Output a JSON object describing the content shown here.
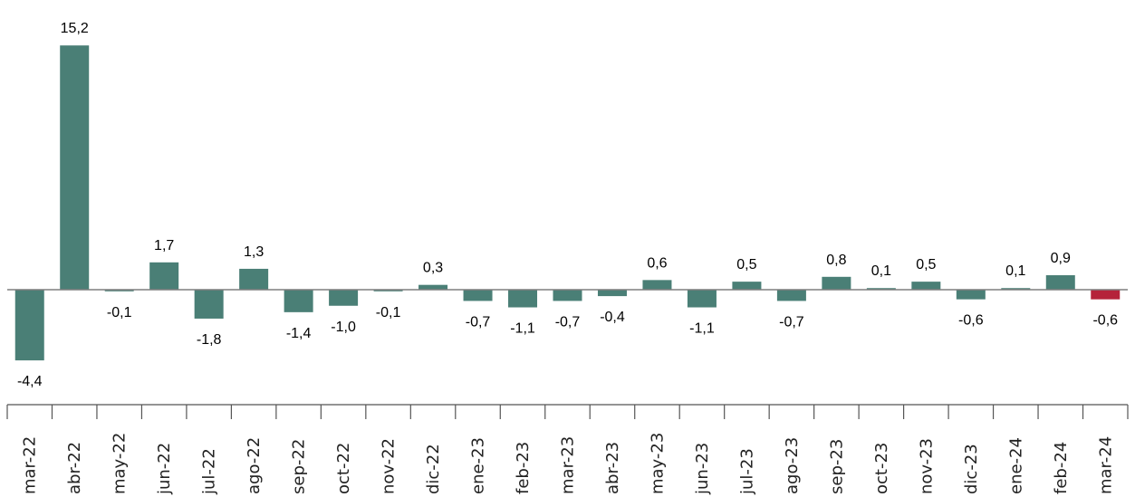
{
  "chart_data": {
    "type": "bar",
    "title": "",
    "xlabel": "",
    "ylabel": "",
    "categories": [
      "mar-22",
      "abr-22",
      "may-22",
      "jun-22",
      "jul-22",
      "ago-22",
      "sep-22",
      "oct-22",
      "nov-22",
      "dic-22",
      "ene-23",
      "feb-23",
      "mar-23",
      "abr-23",
      "may-23",
      "jun-23",
      "jul-23",
      "ago-23",
      "sep-23",
      "oct-23",
      "nov-23",
      "dic-23",
      "ene-24",
      "feb-24",
      "mar-24"
    ],
    "values": [
      -4.4,
      15.2,
      -0.1,
      1.7,
      -1.8,
      1.3,
      -1.4,
      -1.0,
      -0.1,
      0.3,
      -0.7,
      -1.1,
      -0.7,
      -0.4,
      0.6,
      -1.1,
      0.5,
      -0.7,
      0.8,
      0.1,
      0.5,
      -0.6,
      0.1,
      0.9,
      -0.6
    ],
    "labels": [
      "-4,4",
      "15,2",
      "-0,1",
      "1,7",
      "-1,8",
      "1,3",
      "-1,4",
      "-1,0",
      "-0,1",
      "0,3",
      "-0,7",
      "-1,1",
      "-0,7",
      "-0,4",
      "0,6",
      "-1,1",
      "0,5",
      "-0,7",
      "0,8",
      "0,1",
      "0,5",
      "-0,6",
      "0,1",
      "0,9",
      "-0,6"
    ],
    "highlight_index": 24,
    "colors": {
      "bar": "#4a7f76",
      "highlight": "#b5233a",
      "baseline": "#7f7f7f"
    },
    "legend": "none",
    "grid": false
  }
}
